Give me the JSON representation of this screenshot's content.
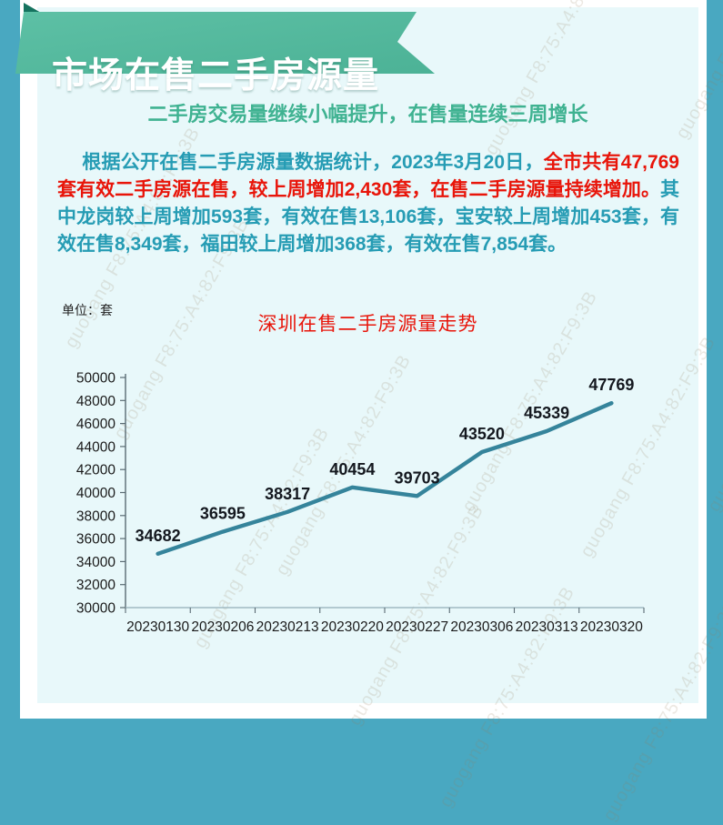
{
  "banner": {
    "title": "市场在售二手房源量"
  },
  "subtitle": "二手房交易量继续小幅提升，在售量连续三周增长",
  "report": {
    "intro_teal": "根据公开在售二手房源量数据统计，2023年3月20日，",
    "highlight_red": "全市共有47,769套有效二手房源在售，较上周增加2,430套，在售二手房源量持续增加。",
    "detail_teal": "其中龙岗较上周增加593套，有效在售13,106套，宝安较上周增加453套，有效在售8,349套，福田较上周增加368套，有效在售7,854套。"
  },
  "unit_label": "单位：套",
  "watermark_text": "guogang F8:75:A4:82:F9:3B",
  "colors": {
    "outer_background": "#49a8c1",
    "card_background": "#ffffff",
    "panel_background": "#e8f8fa",
    "ribbon": "#52b99d",
    "ribbon_fold": "#15735f",
    "banner_text": "#ffffff",
    "subtitle_green": "#3fb291",
    "body_teal": "#269cb4",
    "body_red": "#e8150a",
    "chart_title_red": "#e8150a",
    "axis": "#5a6b73",
    "x_axis_line": "#9fb9c2",
    "tick_label": "#1a1a1a"
  },
  "chart_data": {
    "type": "line",
    "title": "深圳在售二手房源量走势",
    "categories": [
      "20230130",
      "20230206",
      "20230213",
      "20230220",
      "20230227",
      "20230306",
      "20230313",
      "20230320"
    ],
    "values": [
      34682,
      36595,
      38317,
      40454,
      39703,
      43520,
      45339,
      47769
    ],
    "xlabel": "",
    "ylabel": "套",
    "ylim": [
      30000,
      50000
    ],
    "ytick_step": 2000,
    "grid": false,
    "legend": false,
    "data_labels": true,
    "line_color": "#35849b",
    "data_label_color": "#14181f"
  }
}
